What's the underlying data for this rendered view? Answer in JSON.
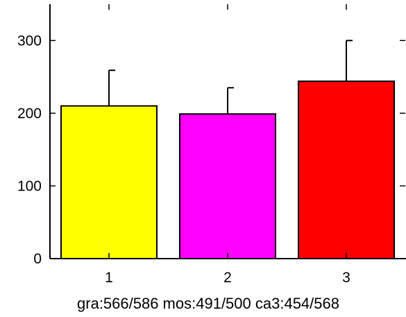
{
  "chart_data": {
    "type": "bar",
    "categories": [
      "1",
      "2",
      "3"
    ],
    "values": [
      210,
      199,
      244
    ],
    "errors": [
      49,
      36,
      56
    ],
    "colors": [
      "#ffff00",
      "#ff00ff",
      "#ff0000"
    ],
    "xlabel": "gra:566/586 mos:491/500 ca3:454/568",
    "ylabel": "",
    "title": "",
    "ylim": [
      0,
      350
    ],
    "yticks": [
      0,
      100,
      200,
      300
    ],
    "grid": false
  }
}
